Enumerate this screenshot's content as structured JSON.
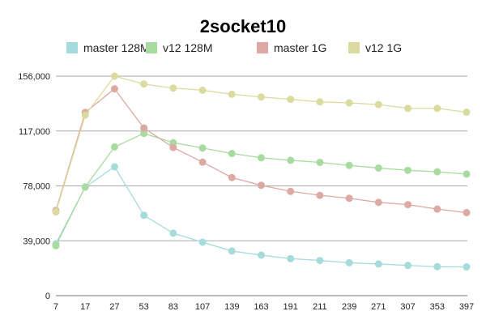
{
  "chart_data": {
    "type": "line",
    "title": "2socket10",
    "xlabel": "",
    "ylabel": "",
    "categories": [
      "7",
      "17",
      "27",
      "53",
      "83",
      "107",
      "139",
      "163",
      "191",
      "211",
      "239",
      "271",
      "307",
      "353",
      "397"
    ],
    "ylim": [
      0,
      156000
    ],
    "yticks": [
      "0",
      "39,000",
      "78,000",
      "117,000",
      "156,000"
    ],
    "ytick_values": [
      0,
      39000,
      78000,
      117000,
      156000
    ],
    "grid": true,
    "legend_position": "top",
    "series": [
      {
        "name": "master 128M",
        "color": "#a6dbdb",
        "values": [
          36900,
          77200,
          91600,
          57100,
          44400,
          38000,
          31700,
          28800,
          26300,
          25000,
          23400,
          22500,
          21500,
          20600,
          20400
        ]
      },
      {
        "name": "v12 128M",
        "color": "#a8dba0",
        "values": [
          35500,
          77200,
          105700,
          115300,
          108700,
          104900,
          101000,
          98000,
          96200,
          94700,
          92600,
          90700,
          89100,
          88000,
          86400
        ]
      },
      {
        "name": "master 1G",
        "color": "#dcaaa3",
        "values": [
          60500,
          130200,
          147000,
          119100,
          105300,
          94900,
          83900,
          78400,
          74100,
          71300,
          69200,
          66300,
          64700,
          61500,
          59000
        ]
      },
      {
        "name": "v12 1G",
        "color": "#dbdb9f",
        "values": [
          59500,
          128300,
          156000,
          150400,
          147500,
          146000,
          143100,
          141200,
          139500,
          137700,
          137000,
          135800,
          133100,
          133100,
          130400
        ]
      }
    ]
  }
}
